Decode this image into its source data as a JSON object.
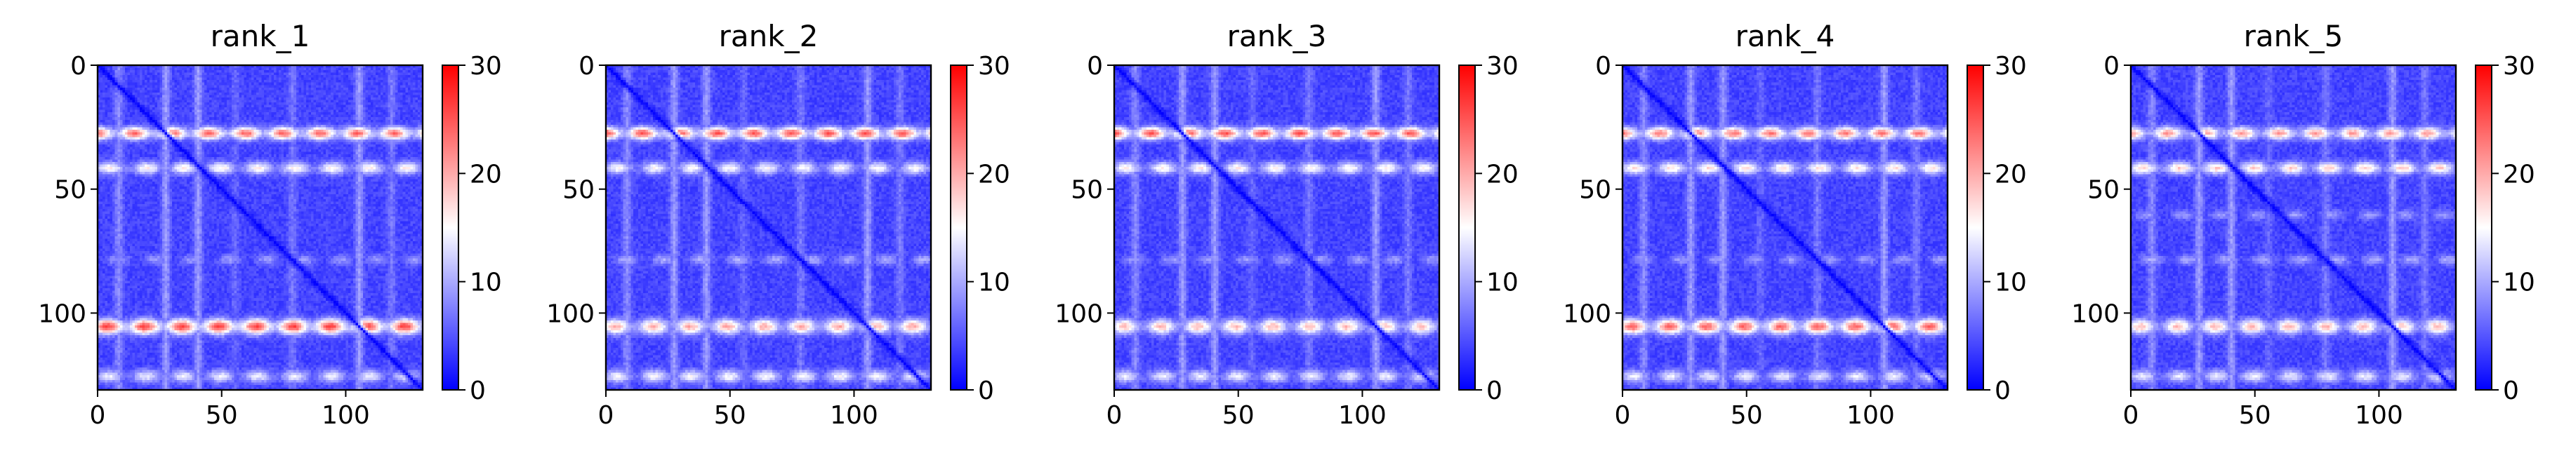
{
  "figure": {
    "panels": [
      "rank_1",
      "rank_2",
      "rank_3",
      "rank_4",
      "rank_5"
    ]
  },
  "chart_data": [
    {
      "type": "heatmap",
      "title": "rank_1",
      "xlabel": "",
      "ylabel": "",
      "x_range": [
        0,
        131
      ],
      "y_range": [
        0,
        131
      ],
      "y_inverted": true,
      "xticks": [
        0,
        50,
        100
      ],
      "yticks": [
        0,
        50,
        100
      ],
      "colorbar": {
        "range": [
          0,
          30
        ],
        "ticks": [
          0,
          10,
          20,
          30
        ],
        "colormap": "bwr",
        "colors": [
          "#0000ff",
          "#ffffff",
          "#ff0000"
        ]
      },
      "matrix_size": 131,
      "diagonal_value": 0,
      "background_value": 4,
      "bands": [
        {
          "center": 27,
          "width": 2.5,
          "value": 24
        },
        {
          "center": 41,
          "width": 2.5,
          "value": 16
        },
        {
          "center": 78,
          "width": 2.0,
          "value": 9
        },
        {
          "center": 105,
          "width": 3.0,
          "value": 26
        },
        {
          "center": 125,
          "width": 2.5,
          "value": 14
        }
      ],
      "columns": [
        {
          "center": 8,
          "value": 8
        },
        {
          "center": 27,
          "value": 9
        },
        {
          "center": 40,
          "value": 9
        },
        {
          "center": 55,
          "value": 6
        },
        {
          "center": 78,
          "value": 7
        },
        {
          "center": 105,
          "value": 9
        },
        {
          "center": 118,
          "value": 7
        }
      ]
    },
    {
      "type": "heatmap",
      "title": "rank_2",
      "xlabel": "",
      "ylabel": "",
      "x_range": [
        0,
        131
      ],
      "y_range": [
        0,
        131
      ],
      "y_inverted": true,
      "xticks": [
        0,
        50,
        100
      ],
      "yticks": [
        0,
        50,
        100
      ],
      "colorbar": {
        "range": [
          0,
          30
        ],
        "ticks": [
          0,
          10,
          20,
          30
        ],
        "colormap": "bwr",
        "colors": [
          "#0000ff",
          "#ffffff",
          "#ff0000"
        ]
      },
      "matrix_size": 131,
      "diagonal_value": 0,
      "background_value": 4,
      "bands": [
        {
          "center": 27,
          "width": 2.5,
          "value": 25
        },
        {
          "center": 41,
          "width": 2.5,
          "value": 15
        },
        {
          "center": 78,
          "width": 2.0,
          "value": 10
        },
        {
          "center": 105,
          "width": 3.0,
          "value": 20
        },
        {
          "center": 125,
          "width": 2.5,
          "value": 15
        }
      ],
      "columns": [
        {
          "center": 8,
          "value": 8
        },
        {
          "center": 27,
          "value": 9
        },
        {
          "center": 40,
          "value": 9
        },
        {
          "center": 55,
          "value": 6
        },
        {
          "center": 78,
          "value": 7
        },
        {
          "center": 105,
          "value": 9
        },
        {
          "center": 118,
          "value": 7
        }
      ]
    },
    {
      "type": "heatmap",
      "title": "rank_3",
      "xlabel": "",
      "ylabel": "",
      "x_range": [
        0,
        131
      ],
      "y_range": [
        0,
        131
      ],
      "y_inverted": true,
      "xticks": [
        0,
        50,
        100
      ],
      "yticks": [
        0,
        50,
        100
      ],
      "colorbar": {
        "range": [
          0,
          30
        ],
        "ticks": [
          0,
          10,
          20,
          30
        ],
        "colormap": "bwr",
        "colors": [
          "#0000ff",
          "#ffffff",
          "#ff0000"
        ]
      },
      "matrix_size": 131,
      "diagonal_value": 0,
      "background_value": 4,
      "bands": [
        {
          "center": 27,
          "width": 2.5,
          "value": 25
        },
        {
          "center": 41,
          "width": 2.5,
          "value": 16
        },
        {
          "center": 78,
          "width": 2.0,
          "value": 9
        },
        {
          "center": 105,
          "width": 3.0,
          "value": 19
        },
        {
          "center": 125,
          "width": 2.5,
          "value": 14
        }
      ],
      "columns": [
        {
          "center": 8,
          "value": 8
        },
        {
          "center": 27,
          "value": 9
        },
        {
          "center": 40,
          "value": 9
        },
        {
          "center": 55,
          "value": 6
        },
        {
          "center": 78,
          "value": 7
        },
        {
          "center": 105,
          "value": 9
        },
        {
          "center": 118,
          "value": 7
        }
      ]
    },
    {
      "type": "heatmap",
      "title": "rank_4",
      "xlabel": "",
      "ylabel": "",
      "x_range": [
        0,
        131
      ],
      "y_range": [
        0,
        131
      ],
      "y_inverted": true,
      "xticks": [
        0,
        50,
        100
      ],
      "yticks": [
        0,
        50,
        100
      ],
      "colorbar": {
        "range": [
          0,
          30
        ],
        "ticks": [
          0,
          10,
          20,
          30
        ],
        "colormap": "bwr",
        "colors": [
          "#0000ff",
          "#ffffff",
          "#ff0000"
        ]
      },
      "matrix_size": 131,
      "diagonal_value": 0,
      "background_value": 4,
      "bands": [
        {
          "center": 27,
          "width": 2.5,
          "value": 23
        },
        {
          "center": 41,
          "width": 2.5,
          "value": 17
        },
        {
          "center": 78,
          "width": 2.0,
          "value": 9
        },
        {
          "center": 105,
          "width": 3.0,
          "value": 24
        },
        {
          "center": 125,
          "width": 2.5,
          "value": 14
        }
      ],
      "columns": [
        {
          "center": 8,
          "value": 8
        },
        {
          "center": 27,
          "value": 9
        },
        {
          "center": 40,
          "value": 9
        },
        {
          "center": 55,
          "value": 6
        },
        {
          "center": 78,
          "value": 7
        },
        {
          "center": 105,
          "value": 9
        },
        {
          "center": 118,
          "value": 7
        }
      ]
    },
    {
      "type": "heatmap",
      "title": "rank_5",
      "xlabel": "",
      "ylabel": "",
      "x_range": [
        0,
        131
      ],
      "y_range": [
        0,
        131
      ],
      "y_inverted": true,
      "xticks": [
        0,
        50,
        100
      ],
      "yticks": [
        0,
        50,
        100
      ],
      "colorbar": {
        "range": [
          0,
          30
        ],
        "ticks": [
          0,
          10,
          20,
          30
        ],
        "colormap": "bwr",
        "colors": [
          "#0000ff",
          "#ffffff",
          "#ff0000"
        ]
      },
      "matrix_size": 131,
      "diagonal_value": 0,
      "background_value": 4,
      "bands": [
        {
          "center": 27,
          "width": 2.5,
          "value": 21
        },
        {
          "center": 41,
          "width": 2.5,
          "value": 18
        },
        {
          "center": 60,
          "width": 2.0,
          "value": 9
        },
        {
          "center": 78,
          "width": 2.0,
          "value": 10
        },
        {
          "center": 105,
          "width": 3.0,
          "value": 19
        },
        {
          "center": 125,
          "width": 2.5,
          "value": 14
        }
      ],
      "columns": [
        {
          "center": 8,
          "value": 8
        },
        {
          "center": 27,
          "value": 9
        },
        {
          "center": 40,
          "value": 9
        },
        {
          "center": 55,
          "value": 6
        },
        {
          "center": 78,
          "value": 7
        },
        {
          "center": 105,
          "value": 9
        },
        {
          "center": 118,
          "value": 7
        }
      ]
    }
  ]
}
